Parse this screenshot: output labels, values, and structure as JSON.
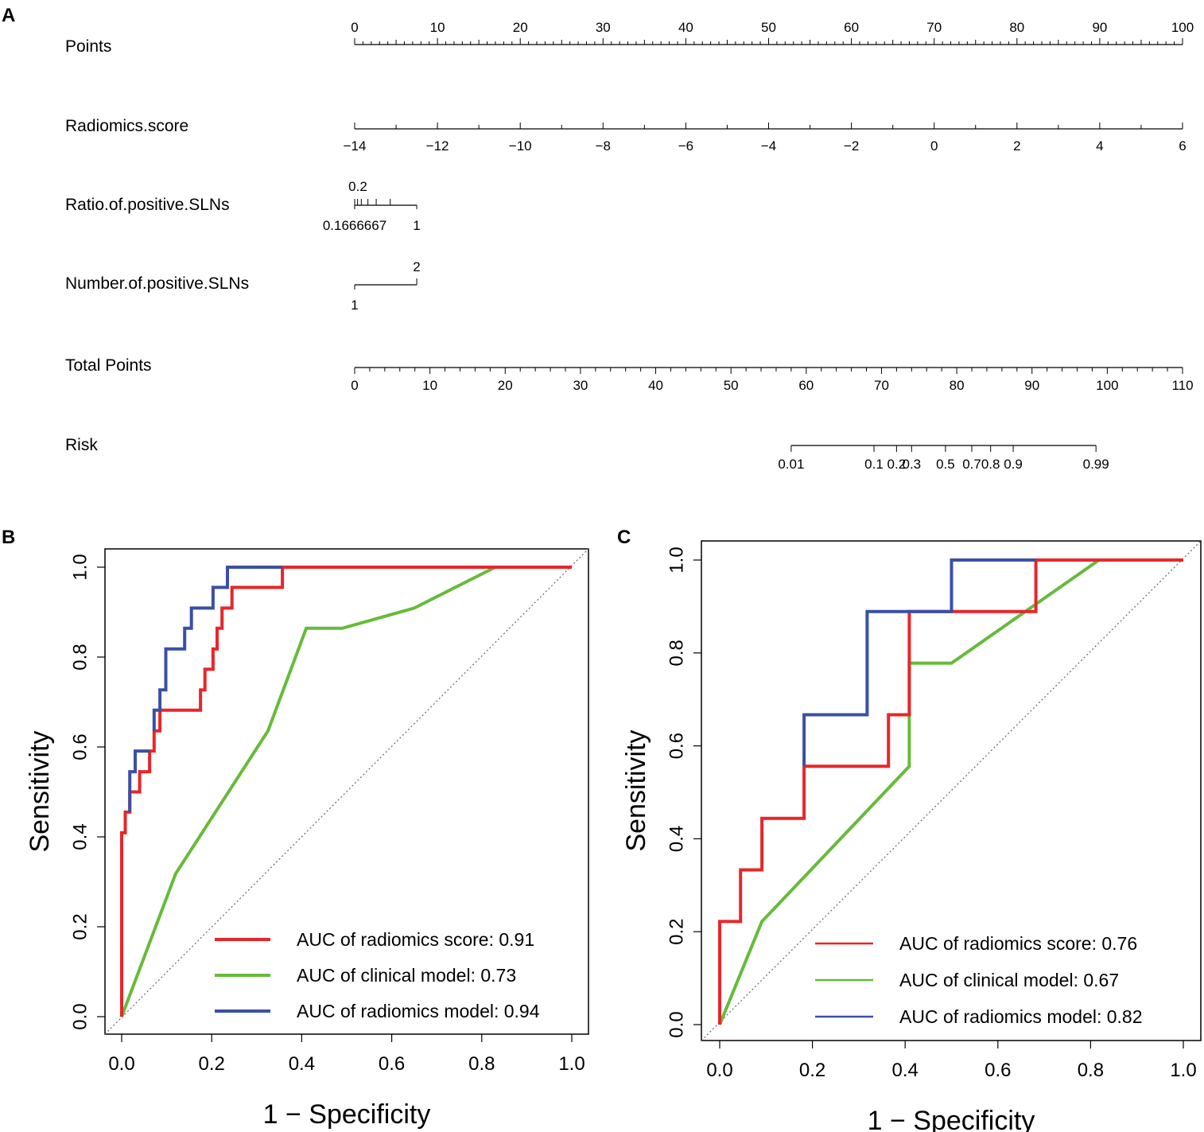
{
  "panel_labels": {
    "a": "A",
    "b": "B",
    "c": "C"
  },
  "chart_data": [
    {
      "type": "nomogram",
      "panel": "A",
      "rows": [
        {
          "label": "Points",
          "ticks": [
            "0",
            "10",
            "20",
            "30",
            "40",
            "50",
            "60",
            "70",
            "80",
            "90",
            "100"
          ]
        },
        {
          "label": "Radiomics.score",
          "ticks": [
            "−14",
            "−12",
            "−10",
            "−8",
            "−6",
            "−4",
            "−2",
            "0",
            "2",
            "4",
            "6"
          ]
        },
        {
          "label": "Ratio.of.positive.SLNs",
          "tick_top": "0.2",
          "tick_bottom_left": "0.1666667",
          "tick_bottom_right": "1"
        },
        {
          "label": "Number.of.positive.SLNs",
          "tick_top": "2",
          "tick_bottom": "1"
        },
        {
          "label": "Total Points",
          "ticks": [
            "0",
            "10",
            "20",
            "30",
            "40",
            "50",
            "60",
            "70",
            "80",
            "90",
            "100",
            "110"
          ]
        },
        {
          "label": "Risk",
          "ticks": [
            "0.01",
            "0.1",
            "0.2",
            "0.3",
            "0.5",
            "0.7",
            "0.8",
            "0.9",
            "0.99"
          ]
        }
      ],
      "points_range": [
        0,
        100
      ],
      "radiomics_score_range": [
        -14,
        6
      ],
      "ratio_points_range": [
        0,
        7.5
      ],
      "number_points": {
        "1": 0,
        "2": 7.5
      },
      "total_points_range": [
        0,
        110
      ],
      "risk_total_points": [
        58,
        69,
        72,
        74,
        78.5,
        82,
        84.5,
        87.5,
        98.5
      ]
    },
    {
      "type": "line",
      "panel": "B",
      "xlabel": "1 − Specificity",
      "ylabel": "Sensitivity",
      "xlim": [
        0,
        1
      ],
      "ylim": [
        0,
        1
      ],
      "x_ticks": [
        "0.0",
        "0.2",
        "0.4",
        "0.6",
        "0.8",
        "1.0"
      ],
      "y_ticks": [
        "0.0",
        "0.2",
        "0.4",
        "0.6",
        "0.8",
        "1.0"
      ],
      "legend": "bottom-right",
      "series": [
        {
          "name": "AUC of radiomics score: 0.91",
          "color": "#e8262a",
          "x": [
            0,
            0,
            0.008,
            0.008,
            0.018,
            0.018,
            0.04,
            0.04,
            0.062,
            0.062,
            0.072,
            0.072,
            0.085,
            0.085,
            0.175,
            0.175,
            0.185,
            0.185,
            0.203,
            0.203,
            0.212,
            0.212,
            0.223,
            0.223,
            0.245,
            0.245,
            0.357,
            0.357,
            1.0
          ],
          "y": [
            0,
            0.409,
            0.409,
            0.455,
            0.455,
            0.5,
            0.5,
            0.545,
            0.545,
            0.591,
            0.591,
            0.636,
            0.636,
            0.682,
            0.682,
            0.727,
            0.727,
            0.773,
            0.773,
            0.818,
            0.818,
            0.864,
            0.864,
            0.909,
            0.909,
            0.955,
            0.955,
            1.0,
            1.0
          ]
        },
        {
          "name": "AUC of clinical model: 0.73",
          "color": "#66bb3a",
          "x": [
            0,
            0.12,
            0.325,
            0.41,
            0.49,
            0.65,
            0.83,
            1.0
          ],
          "y": [
            0,
            0.318,
            0.636,
            0.864,
            0.864,
            0.909,
            1.0,
            1.0
          ]
        },
        {
          "name": "AUC of radiomics model: 0.94",
          "color": "#3a4fa6",
          "x": [
            0.072,
            0.072,
            0.085,
            0.085,
            0.098,
            0.098,
            0.14,
            0.14,
            0.155,
            0.155,
            0.203,
            0.203,
            0.235,
            0.235,
            0.357
          ],
          "y": [
            0.636,
            0.682,
            0.682,
            0.727,
            0.727,
            0.818,
            0.818,
            0.864,
            0.864,
            0.909,
            0.909,
            0.955,
            0.955,
            1.0,
            1.0
          ],
          "extra": {
            "x": [
              0.018,
              0.018,
              0.03,
              0.03,
              0.062
            ],
            "y": [
              0.455,
              0.545,
              0.545,
              0.591,
              0.591
            ]
          }
        }
      ]
    },
    {
      "type": "line",
      "panel": "C",
      "xlabel": "1 − Specificity",
      "ylabel": "Sensitivity",
      "xlim": [
        0,
        1
      ],
      "ylim": [
        0,
        1
      ],
      "x_ticks": [
        "0.0",
        "0.2",
        "0.4",
        "0.6",
        "0.8",
        "1.0"
      ],
      "y_ticks": [
        "0.0",
        "0.2",
        "0.4",
        "0.6",
        "0.8",
        "1.0"
      ],
      "legend": "bottom-right",
      "series": [
        {
          "name": "AUC of radiomics score: 0.76",
          "color": "#e8262a",
          "x": [
            0,
            0,
            0.045,
            0.045,
            0.091,
            0.091,
            0.182,
            0.182,
            0.364,
            0.364,
            0.409,
            0.409,
            0.682,
            0.682,
            1.0
          ],
          "y": [
            0,
            0.222,
            0.222,
            0.333,
            0.333,
            0.444,
            0.444,
            0.556,
            0.556,
            0.667,
            0.667,
            0.889,
            0.889,
            1.0,
            1.0
          ]
        },
        {
          "name": "AUC of clinical model: 0.67",
          "color": "#66bb3a",
          "x": [
            0,
            0.091,
            0.409,
            0.409,
            0.5,
            0.818,
            1.0
          ],
          "y": [
            0,
            0.222,
            0.556,
            0.778,
            0.778,
            1.0,
            1.0
          ]
        },
        {
          "name": "AUC of radiomics model: 0.82",
          "color": "#3a4fa6",
          "x": [
            0.182,
            0.182,
            0.318,
            0.318,
            0.409,
            0.409,
            0.5,
            0.5,
            0.682
          ],
          "y": [
            0.556,
            0.667,
            0.667,
            0.889,
            0.889,
            0.889,
            0.889,
            1.0,
            1.0
          ]
        }
      ]
    }
  ]
}
